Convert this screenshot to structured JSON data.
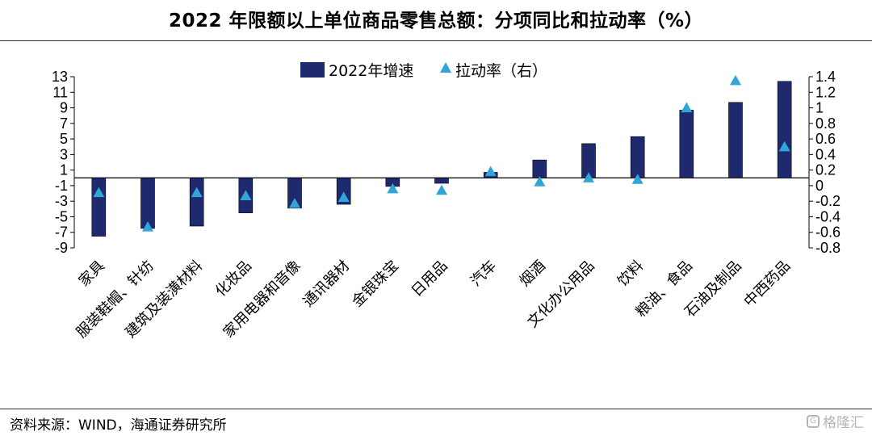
{
  "title": "2022 年限额以上单位商品零售总额：分项同比和拉动率（%）",
  "source": "资料来源：WIND，海通证券研究所",
  "watermark": "格隆汇",
  "colors": {
    "bar": "#1f2a6e",
    "marker": "#2fa5d8",
    "axis": "#000000"
  },
  "chart_data": {
    "type": "bar",
    "categories": [
      "家具",
      "服装鞋帽、针纺",
      "建筑及装潢材料",
      "化妆品",
      "家用电器和音像",
      "通讯器材",
      "金银珠宝",
      "日用品",
      "汽车",
      "烟酒",
      "文化办公用品",
      "饮料",
      "粮油、食品",
      "石油及制品",
      "中西药品"
    ],
    "series": [
      {
        "name": "2022年增速",
        "type": "bar",
        "axis": "left",
        "values": [
          -7.5,
          -6.5,
          -6.2,
          -4.5,
          -3.9,
          -3.4,
          -1.1,
          -0.7,
          0.7,
          2.3,
          4.4,
          5.3,
          8.7,
          9.7,
          12.4
        ]
      },
      {
        "name": "拉动率（右）",
        "type": "scatter",
        "marker": "triangle",
        "axis": "right",
        "values": [
          -0.09,
          -0.53,
          -0.09,
          -0.13,
          -0.23,
          -0.15,
          -0.04,
          -0.06,
          0.18,
          0.05,
          0.1,
          0.08,
          1.0,
          1.35,
          0.5
        ]
      }
    ],
    "y_left": {
      "ylim": [
        -9,
        13
      ],
      "ticks": [
        "13",
        "11",
        "9",
        "7",
        "5",
        "3",
        "1",
        "-1",
        "-3",
        "-5",
        "-7",
        "-9"
      ],
      "values": [
        13,
        11,
        9,
        7,
        5,
        3,
        1,
        -1,
        -3,
        -5,
        -7,
        -9
      ]
    },
    "y_right": {
      "ylim": [
        -0.8,
        1.4
      ],
      "ticks": [
        "1.4",
        "1.2",
        "1",
        "0.8",
        "0.6",
        "0.4",
        "0.2",
        "0",
        "-0.2",
        "-0.4",
        "-0.6",
        "-0.8"
      ],
      "values": [
        1.4,
        1.2,
        1.0,
        0.8,
        0.6,
        0.4,
        0.2,
        0,
        -0.2,
        -0.4,
        -0.6,
        -0.8
      ]
    },
    "legend": {
      "position": "top-center",
      "items": [
        "2022年增速",
        "拉动率（右）"
      ]
    },
    "grid": false
  }
}
